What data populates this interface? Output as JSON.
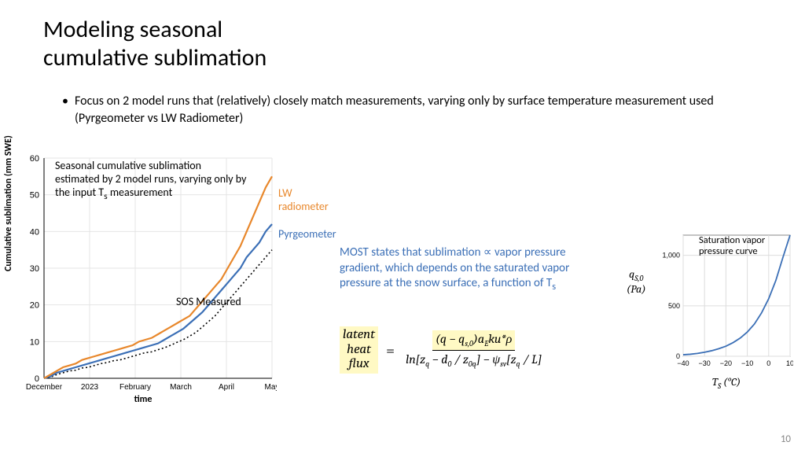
{
  "title_line1": "Modeling seasonal",
  "title_line2": "cumulative sublimation",
  "bullet_text": "Focus on 2 model runs that (relatively) closely match measurements, varying only by surface temperature measurement used (Pyrgeometer vs LW Radiometer)",
  "page_number": "10",
  "chart1": {
    "ylabel": "Cumulative sublimation (mm SWE)",
    "xlabel": "time",
    "ylim": [
      0,
      60
    ],
    "ytick_step": 10,
    "x_categories": [
      "December",
      "2023",
      "February",
      "March",
      "April",
      "May"
    ],
    "annotation": "Seasonal cumulative sublimation estimated by 2 model runs, varying only by the input T",
    "annotation_sub": "s",
    "annotation_tail": " measurement",
    "grid_color": "#e5e5e5",
    "axis_color": "#000000",
    "series": {
      "lw": {
        "label": "LW radiometer",
        "color": "#e8872b",
        "width": 2.2,
        "y": [
          0,
          1,
          2,
          3,
          3.5,
          4,
          5,
          5.5,
          6,
          6.5,
          7,
          7.5,
          8,
          8.5,
          9,
          10,
          10.5,
          11,
          12,
          13,
          14,
          15,
          16,
          17,
          19,
          21,
          23,
          25,
          27,
          30,
          33,
          36,
          40,
          44,
          48,
          52,
          55
        ]
      },
      "pyr": {
        "label": "Pyrgeometer",
        "color": "#3b6fb6",
        "width": 2.2,
        "y": [
          0,
          0.5,
          1.5,
          2,
          2.5,
          3,
          3.5,
          4,
          4.5,
          5,
          5.5,
          6,
          6.5,
          7,
          7.5,
          8,
          8.5,
          9,
          9.5,
          10.5,
          11.5,
          12.5,
          13.5,
          15,
          16.5,
          18,
          20,
          22,
          24,
          26,
          28,
          30,
          33,
          35,
          37,
          40,
          42
        ]
      },
      "sos": {
        "label": "SOS Measured",
        "color": "#000000",
        "width": 1.6,
        "dash": "2,3",
        "y": [
          0,
          0.3,
          1,
          1.5,
          2,
          2.2,
          2.8,
          3,
          3.5,
          4,
          4.3,
          4.8,
          5,
          5.5,
          6,
          6.5,
          7,
          7.2,
          7.8,
          8.3,
          9,
          9.8,
          10.5,
          11.5,
          12.5,
          14,
          15.5,
          17,
          19,
          21,
          23,
          25,
          27,
          29,
          31,
          33,
          35
        ]
      }
    }
  },
  "explain": {
    "text": "MOST states that sublimation ∝ vapor pressure gradient, which depends on the saturated vapor pressure at the snow surface, a function of T",
    "sub": "s",
    "color": "#3b6fb6"
  },
  "equation": {
    "lhs1": "latent",
    "lhs2": "heat",
    "lhs3": "flux",
    "numerator": "(q − q",
    "num_sub": "s,0",
    "num_tail": ")a",
    "num_sub2": "E",
    "num_tail2": "ku*ρ",
    "denominator": "ln[z",
    "den_sub1": "q",
    "den_mid": " − d",
    "den_sub2": "0",
    "den_mid2": " / z",
    "den_sub3": "0q",
    "den_mid3": "] − ψ",
    "den_sub4": "sv",
    "den_mid4": "[z",
    "den_sub5": "q",
    "den_tail": " / L]"
  },
  "chart2": {
    "annotation": "Saturation vapor pressure curve",
    "ylab_line1": "q",
    "ylab_sub1": "S,0",
    "ylab_line2": "(Pa)",
    "xlab": "T",
    "xlab_sub": "S",
    "xlab_tail": " (°C)",
    "xlim": [
      -40,
      10
    ],
    "xtick_step": 10,
    "ylim": [
      0,
      1200
    ],
    "yticks": [
      0,
      500,
      1000
    ],
    "series_color": "#3b6fb6",
    "series_width": 1.8,
    "series_y": [
      15,
      20,
      28,
      40,
      55,
      75,
      100,
      135,
      180,
      240,
      320,
      430,
      570,
      750,
      980,
      1200
    ],
    "grid_color": "#dddddd",
    "border_color": "#888888"
  }
}
